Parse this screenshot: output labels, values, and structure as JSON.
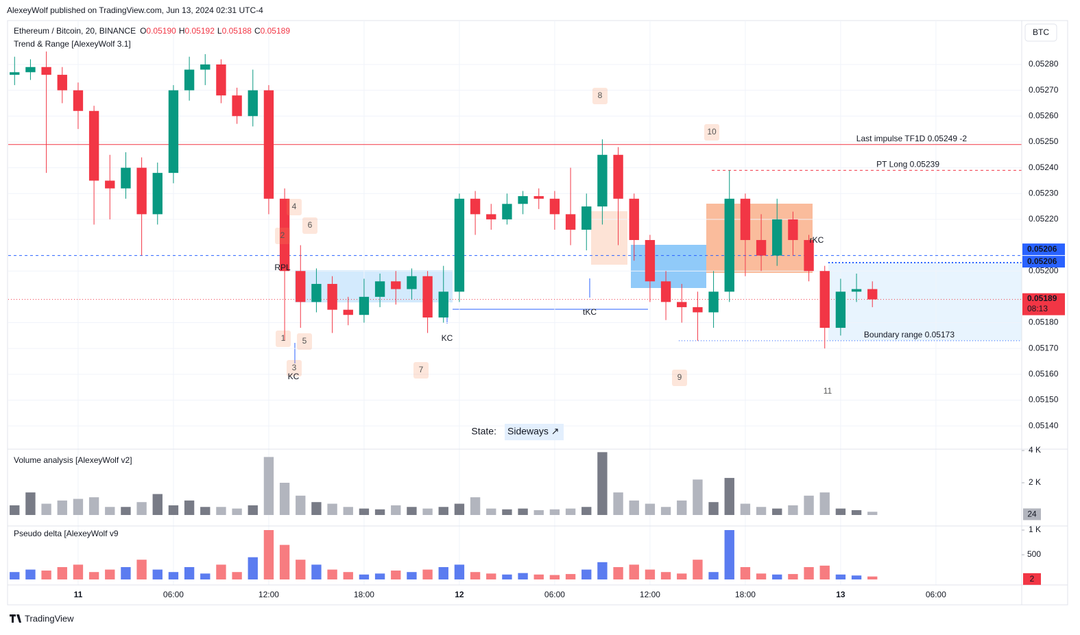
{
  "header": "AlexeyWolf published on TradingView.com, Jun 13, 2024 02:31 UTC-4",
  "footer": "TradingView",
  "chart_data": {
    "type": "candlestick",
    "title": "Ethereum / Bitcoin, 20, BINANCE",
    "indicator": "Trend & Range [AlexeyWolf 3.1]",
    "currency": "BTC",
    "legend_values": [
      {
        "key": "O",
        "value": 0.0519,
        "label": "0.05190"
      },
      {
        "key": "H",
        "value": 0.05192,
        "label": "0.05192"
      },
      {
        "key": "L",
        "value": 0.05188,
        "label": "0.05188"
      },
      {
        "key": "C",
        "value": 0.05189,
        "label": "0.05189"
      }
    ],
    "x": [
      -4,
      -3,
      -2,
      -1,
      0,
      1,
      2,
      3,
      4,
      5,
      6,
      7,
      8,
      9,
      10,
      11,
      12,
      13,
      14,
      15,
      16,
      17,
      18,
      19,
      20,
      21,
      22,
      23,
      24,
      25,
      26,
      27,
      28,
      29,
      30,
      31,
      32,
      33,
      34,
      35,
      36,
      37,
      38,
      39,
      40,
      41,
      42,
      43,
      44,
      45,
      46,
      47,
      48,
      49,
      50
    ],
    "open": [
      0.05276,
      0.05277,
      0.05279,
      0.05276,
      0.0527,
      0.05262,
      0.05235,
      0.05232,
      0.0524,
      0.05222,
      0.05238,
      0.0527,
      0.05278,
      0.0528,
      0.05268,
      0.0526,
      0.0527,
      0.05228,
      0.052,
      0.05188,
      0.05195,
      0.05185,
      0.05183,
      0.0519,
      0.05196,
      0.05193,
      0.05198,
      0.05182,
      0.05192,
      0.05228,
      0.05222,
      0.0522,
      0.05226,
      0.05229,
      0.05228,
      0.05222,
      0.05216,
      0.05225,
      0.05245,
      0.05228,
      0.05212,
      0.05196,
      0.05188,
      0.05186,
      0.05184,
      0.05192,
      0.05228,
      0.05212,
      0.05206,
      0.0522,
      0.05212,
      0.052,
      0.05178,
      0.05192,
      0.05193
    ],
    "high": [
      0.05283,
      0.05282,
      0.05285,
      0.05279,
      0.05273,
      0.05264,
      0.05245,
      0.05246,
      0.05244,
      0.05242,
      0.05272,
      0.05283,
      0.05284,
      0.05282,
      0.05271,
      0.05278,
      0.05272,
      0.05232,
      0.0521,
      0.05201,
      0.05198,
      0.0519,
      0.05197,
      0.05199,
      0.052,
      0.05201,
      0.052,
      0.05202,
      0.0523,
      0.05231,
      0.05226,
      0.0523,
      0.05231,
      0.05232,
      0.05231,
      0.0524,
      0.0523,
      0.05251,
      0.05248,
      0.0523,
      0.05214,
      0.052,
      0.05195,
      0.05192,
      0.052,
      0.05239,
      0.0523,
      0.05222,
      0.05228,
      0.05223,
      0.05214,
      0.05202,
      0.05197,
      0.05199,
      0.05196
    ],
    "low": [
      0.05272,
      0.05274,
      0.05238,
      0.05265,
      0.05255,
      0.05218,
      0.0522,
      0.05228,
      0.05206,
      0.05218,
      0.05234,
      0.05266,
      0.05272,
      0.05265,
      0.05257,
      0.05256,
      0.05222,
      0.05173,
      0.05178,
      0.05184,
      0.05176,
      0.05179,
      0.0518,
      0.05186,
      0.05187,
      0.05189,
      0.05176,
      0.0518,
      0.05188,
      0.05214,
      0.05216,
      0.05218,
      0.05222,
      0.05224,
      0.05216,
      0.0521,
      0.05208,
      0.05218,
      0.0521,
      0.05204,
      0.05188,
      0.05181,
      0.0518,
      0.05173,
      0.05178,
      0.05188,
      0.05198,
      0.052,
      0.05202,
      0.05206,
      0.05196,
      0.0517,
      0.05175,
      0.05188,
      0.05186
    ],
    "close": [
      0.05277,
      0.05279,
      0.05276,
      0.0527,
      0.05262,
      0.05235,
      0.05232,
      0.0524,
      0.05222,
      0.05238,
      0.0527,
      0.05278,
      0.0528,
      0.05268,
      0.0526,
      0.0527,
      0.05228,
      0.052,
      0.05188,
      0.05195,
      0.05185,
      0.05183,
      0.0519,
      0.05196,
      0.05193,
      0.05198,
      0.05182,
      0.05192,
      0.05228,
      0.05222,
      0.0522,
      0.05226,
      0.05229,
      0.05228,
      0.05222,
      0.05216,
      0.05225,
      0.05245,
      0.05228,
      0.05212,
      0.05196,
      0.05188,
      0.05186,
      0.05184,
      0.05192,
      0.05228,
      0.05212,
      0.05206,
      0.0522,
      0.05212,
      0.052,
      0.05178,
      0.05192,
      0.05193,
      0.05189
    ],
    "colors": {
      "up": "#089981",
      "down": "#f23645"
    },
    "xlim": [
      -4.4,
      59.4
    ],
    "xticks": [
      {
        "value": 0,
        "label": "11"
      },
      {
        "value": 6,
        "label": "06:00"
      },
      {
        "value": 12,
        "label": "12:00"
      },
      {
        "value": 18,
        "label": "18:00"
      },
      {
        "value": 24,
        "label": "12"
      },
      {
        "value": 30,
        "label": "06:00"
      },
      {
        "value": 36,
        "label": "12:00"
      },
      {
        "value": 42,
        "label": "18:00"
      },
      {
        "value": 48,
        "label": "13"
      },
      {
        "value": 54,
        "label": "06:00"
      }
    ],
    "ylim": [
      0.05131,
      0.05297
    ],
    "yticks": [
      {
        "value": 0.0528,
        "label": "0.05280"
      },
      {
        "value": 0.0527,
        "label": "0.05270"
      },
      {
        "value": 0.0526,
        "label": "0.05260"
      },
      {
        "value": 0.0525,
        "label": "0.05250"
      },
      {
        "value": 0.0524,
        "label": "0.05240"
      },
      {
        "value": 0.0523,
        "label": "0.05230"
      },
      {
        "value": 0.0522,
        "label": "0.05220"
      },
      {
        "value": 0.052,
        "label": "0.05200"
      },
      {
        "value": 0.0518,
        "label": "0.05180"
      },
      {
        "value": 0.0517,
        "label": "0.05170"
      },
      {
        "value": 0.0516,
        "label": "0.05160"
      },
      {
        "value": 0.0515,
        "label": "0.05150"
      },
      {
        "value": 0.0514,
        "label": "0.05140"
      }
    ],
    "grid": true,
    "levels": [
      {
        "label": "Last impulse TF1D 0.05249 -2",
        "value": 0.05249,
        "color": "#f23645",
        "text_color": "#f23645",
        "dash": "solid"
      },
      {
        "label": "PT Long 0.05239",
        "value": 0.05239,
        "color": "#f23645",
        "text_color": "#2962ff",
        "dash": "dashed"
      },
      {
        "label": "Boundary range 0.05173",
        "value": 0.05173,
        "color": "#2962ff",
        "text_color": "#2962ff",
        "dash": "dotted"
      }
    ],
    "price_tags": [
      {
        "value": 0.05206,
        "label": "0.05206",
        "color": "#2962ff",
        "dash": "dashed"
      },
      {
        "value": 0.05206,
        "label": "0.05206",
        "color": "#2962ff",
        "dash": "none"
      },
      {
        "value": 0.05189,
        "label": "0.05189",
        "color": "#f23645",
        "dash": "dotted"
      }
    ],
    "countdown": "08:13",
    "annotations": {
      "markers": [
        "1",
        "2",
        "3",
        "4",
        "5",
        "6",
        "7",
        "8",
        "9",
        "10",
        "11"
      ],
      "texts": [
        "KC",
        "KC",
        "tKC",
        "rKC",
        "RPL"
      ]
    },
    "state": {
      "label": "State:",
      "value": "Sideways ↗"
    },
    "volume": {
      "title": "Volume analysis [AlexeyWolf v2]",
      "values": [
        600,
        1400,
        700,
        900,
        1000,
        1100,
        500,
        500,
        800,
        1300,
        600,
        900,
        500,
        500,
        400,
        600,
        3600,
        2000,
        1200,
        800,
        700,
        500,
        400,
        350,
        600,
        500,
        400,
        500,
        700,
        1100,
        400,
        350,
        400,
        300,
        350,
        400,
        500,
        3900,
        1400,
        900,
        700,
        500,
        900,
        2200,
        800,
        2300,
        700,
        500,
        400,
        600,
        1200,
        1400,
        400,
        300,
        200
      ],
      "colors": {
        "up": "#787b86",
        "down": "#b2b5be"
      },
      "ylim": [
        0,
        4000
      ],
      "yticks": [
        {
          "value": 4000,
          "label": "4 K"
        },
        {
          "value": 2000,
          "label": "2 K"
        }
      ],
      "last_value": 24
    },
    "delta": {
      "title": "Pseudo delta [AlexeyWolf v9",
      "values": [
        150,
        200,
        180,
        250,
        300,
        150,
        200,
        250,
        400,
        200,
        150,
        250,
        120,
        300,
        150,
        450,
        1000,
        700,
        400,
        300,
        200,
        150,
        100,
        120,
        180,
        150,
        200,
        250,
        300,
        150,
        120,
        100,
        130,
        100,
        90,
        110,
        200,
        350,
        250,
        300,
        200,
        150,
        120,
        400,
        150,
        1000,
        250,
        120,
        100,
        110,
        250,
        280,
        100,
        80,
        60
      ],
      "colors": {
        "up": "#5b7cf0",
        "down": "#f77c80"
      },
      "ylim": [
        0,
        1000
      ],
      "yticks": [
        {
          "value": 1000,
          "label": "1 K"
        },
        500
      ],
      "last_value": 2
    }
  }
}
